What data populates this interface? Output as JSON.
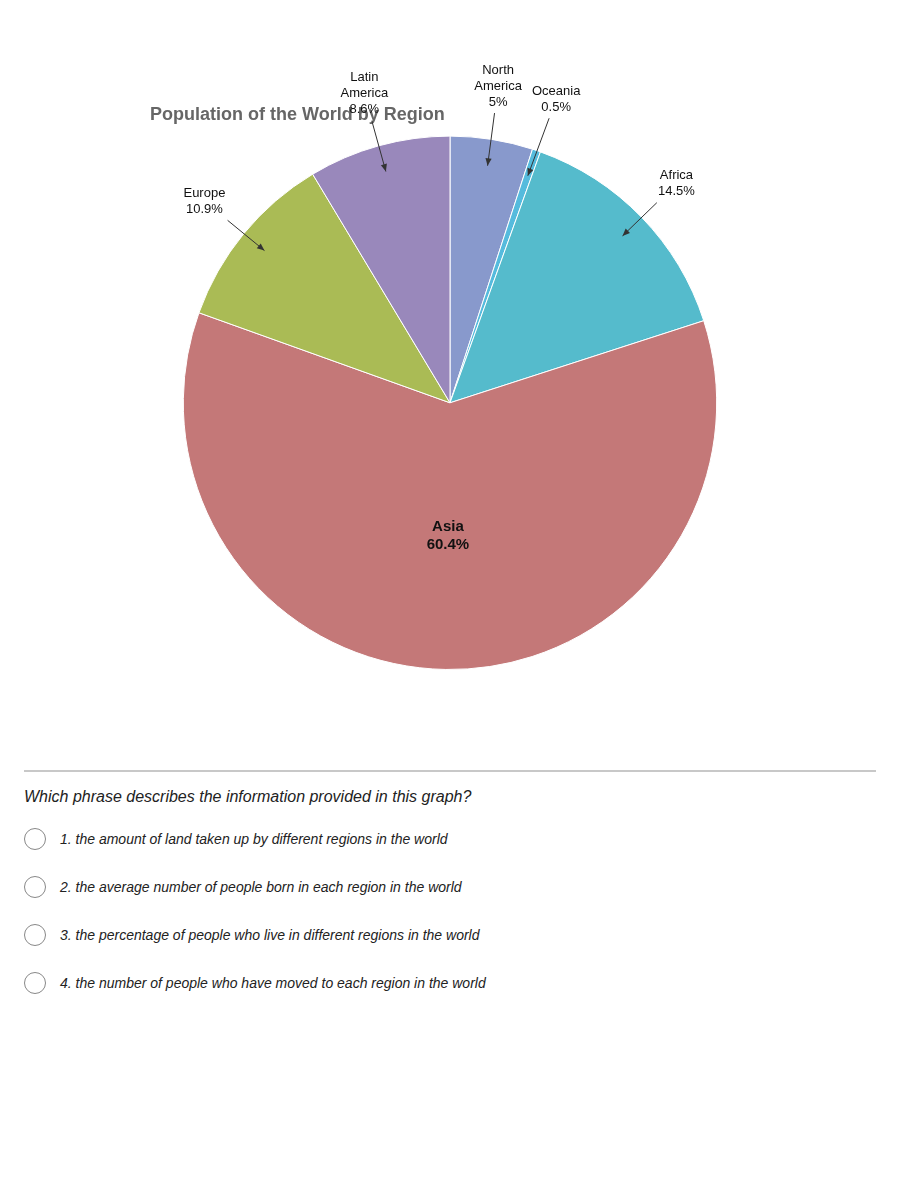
{
  "chart_data": {
    "type": "pie",
    "title": "Population of the World by Region",
    "categories": [
      "North America",
      "Oceania",
      "Africa",
      "Asia",
      "Europe",
      "Latin America"
    ],
    "values": [
      5.0,
      0.5,
      14.5,
      60.4,
      10.9,
      8.6
    ],
    "value_labels": [
      "5%",
      "0.5%",
      "14.5%",
      "60.4%",
      "10.9%",
      "8.6%"
    ],
    "data_labels": true,
    "colors": [
      "#8899cc",
      "#55bbdd",
      "#55bbcc",
      "#c47878",
      "#aabb55",
      "#9988bb"
    ],
    "annotations": [
      "Which phrase describes the information provided in this graph?",
      "1.  the amount of land taken up by different regions in the world",
      "2.  the average number of people born in each region in the world",
      "3.  the percentage of people who live in different regions in the world",
      "4.  the number of people who have moved to each region in the world"
    ]
  }
}
